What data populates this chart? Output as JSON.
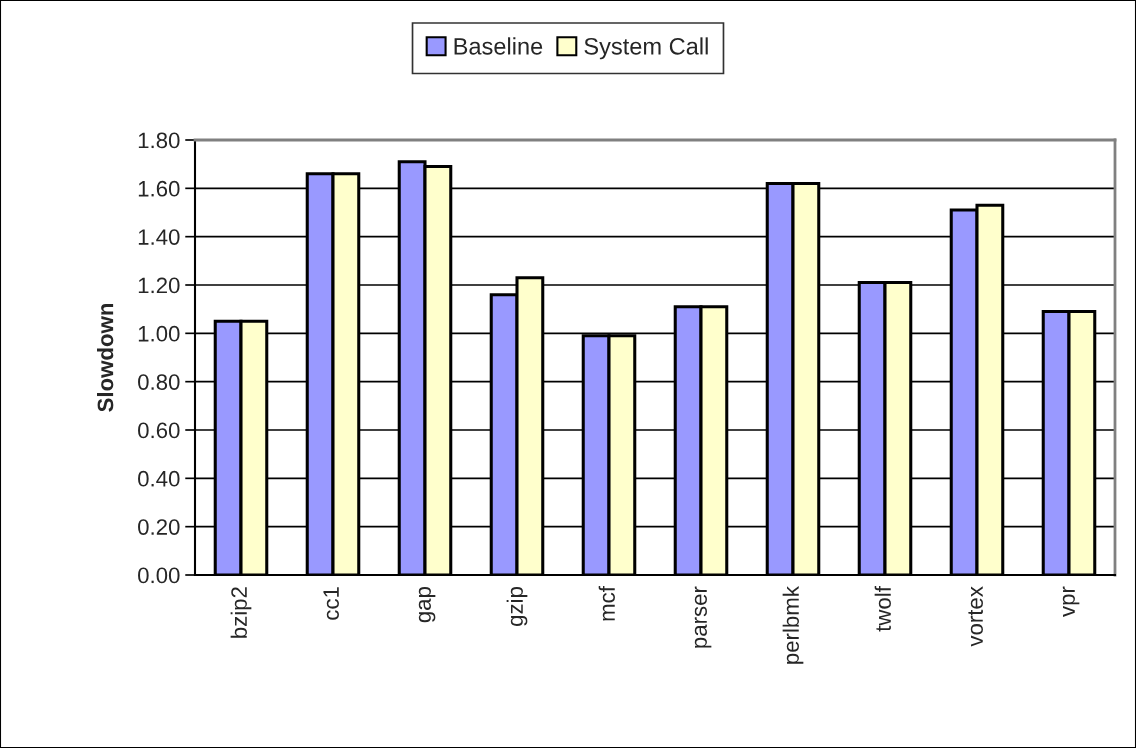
{
  "chart_data": {
    "type": "bar",
    "ylabel": "Slowdown",
    "categories": [
      "bzip2",
      "cc1",
      "gap",
      "gzip",
      "mcf",
      "parser",
      "perlbmk",
      "twolf",
      "vortex",
      "vpr"
    ],
    "series": [
      {
        "name": "Baseline",
        "color": "#9999ff",
        "values": [
          1.05,
          1.66,
          1.71,
          1.16,
          0.99,
          1.11,
          1.62,
          1.21,
          1.51,
          1.09
        ]
      },
      {
        "name": "System Call",
        "color": "#ffffcc",
        "values": [
          1.05,
          1.66,
          1.69,
          1.23,
          0.99,
          1.11,
          1.62,
          1.21,
          1.53,
          1.09
        ]
      }
    ],
    "ylim": [
      0,
      1.8
    ],
    "yticks": [
      {
        "value": 0,
        "label": "0.00"
      },
      {
        "value": 0.2,
        "label": "0.20"
      },
      {
        "value": 0.4,
        "label": "0.40"
      },
      {
        "value": 0.6,
        "label": "0.60"
      },
      {
        "value": 0.8,
        "label": "0.80"
      },
      {
        "value": 1.0,
        "label": "1.00"
      },
      {
        "value": 1.2,
        "label": "1.20"
      },
      {
        "value": 1.4,
        "label": "1.40"
      },
      {
        "value": 1.6,
        "label": "1.60"
      },
      {
        "value": 1.8,
        "label": "1.80"
      }
    ],
    "grid": "y",
    "legend": "top"
  }
}
